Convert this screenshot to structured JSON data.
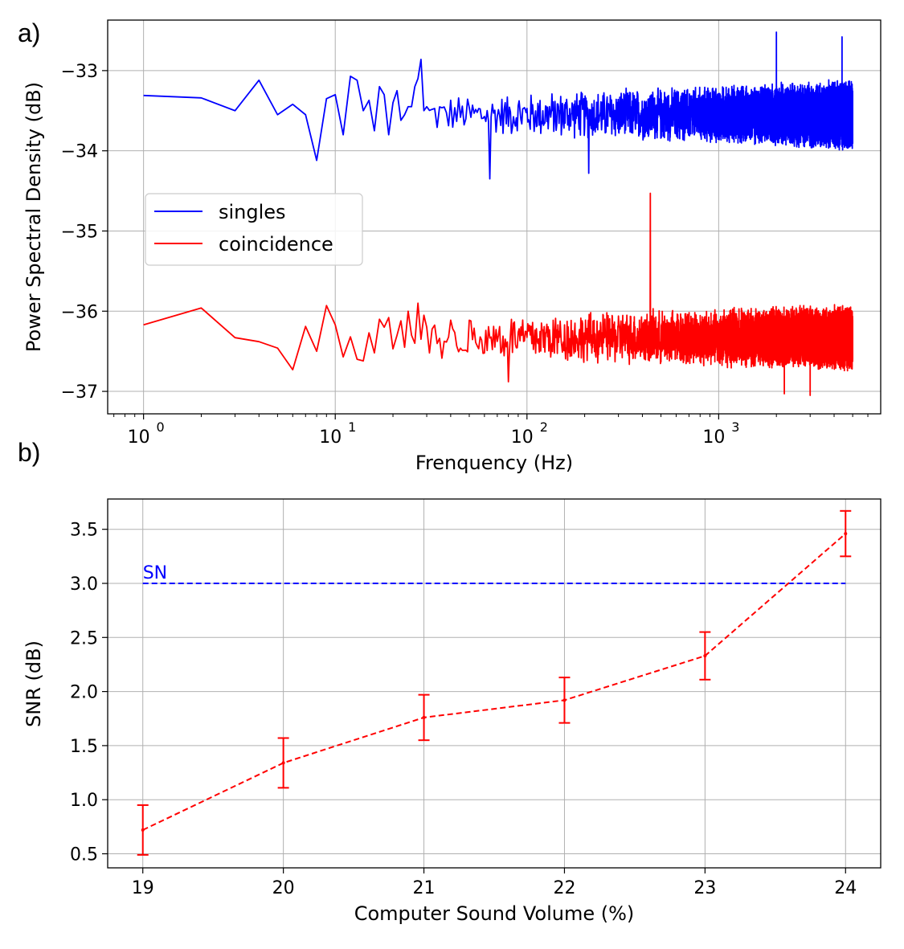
{
  "panel_labels": {
    "a": "a)",
    "b": "b)"
  },
  "chart_data": [
    {
      "type": "line",
      "panel": "a)",
      "title": "",
      "xlabel": "Frenquency (Hz)",
      "ylabel": "Power Spectral Density (dB)",
      "xscale": "log",
      "xlim": [
        0.65,
        7000
      ],
      "ylim": [
        -37.28,
        -32.37
      ],
      "xticks": [
        {
          "value": 1,
          "base": "10",
          "exp": "0"
        },
        {
          "value": 10,
          "base": "10",
          "exp": "1"
        },
        {
          "value": 100,
          "base": "10",
          "exp": "2"
        },
        {
          "value": 1000,
          "base": "10",
          "exp": "3"
        }
      ],
      "yticks": [
        -33,
        -34,
        -35,
        -36,
        -37
      ],
      "ytick_labels": [
        "−33",
        "−34",
        "−35",
        "−36",
        "−37"
      ],
      "grid": true,
      "legend_position": "center-left",
      "series": [
        {
          "name": "singles",
          "color": "#0000ff",
          "x": [
            1,
            2,
            3,
            4,
            5,
            6,
            7,
            8,
            9,
            10,
            11,
            12,
            13,
            14,
            15,
            16,
            17,
            18,
            19,
            20,
            21,
            22,
            23,
            24,
            25,
            26,
            27,
            28,
            29,
            30
          ],
          "values": [
            -33.31,
            -33.34,
            -33.5,
            -33.12,
            -33.55,
            -33.42,
            -33.55,
            -34.12,
            -33.35,
            -33.3,
            -33.8,
            -33.07,
            -33.12,
            -33.5,
            -33.37,
            -33.75,
            -33.2,
            -33.3,
            -33.8,
            -33.4,
            -33.25,
            -33.62,
            -33.55,
            -33.45,
            -33.45,
            -33.2,
            -33.1,
            -32.86,
            -33.5,
            -33.45
          ],
          "noise_band": {
            "x_start": 30,
            "x_end": 5000,
            "center": -33.55,
            "half_width_start": 0.25,
            "half_width_end": 0.45
          },
          "notable_points": [
            {
              "x": 64,
              "y": -34.35
            },
            {
              "x": 210,
              "y": -34.28
            },
            {
              "x": 2000,
              "y": -32.52
            },
            {
              "x": 4400,
              "y": -32.58
            }
          ]
        },
        {
          "name": "coincidence",
          "color": "#ff0000",
          "x": [
            1,
            2,
            3,
            4,
            5,
            6,
            7,
            8,
            9,
            10,
            11,
            12,
            13,
            14,
            15,
            16,
            17,
            18,
            19,
            20,
            21,
            22,
            23,
            24,
            25,
            26,
            27,
            28,
            29,
            30
          ],
          "values": [
            -36.17,
            -35.96,
            -36.33,
            -36.38,
            -36.46,
            -36.73,
            -36.19,
            -36.5,
            -35.93,
            -36.17,
            -36.57,
            -36.32,
            -36.6,
            -36.62,
            -36.27,
            -36.52,
            -36.1,
            -36.2,
            -36.08,
            -36.47,
            -36.3,
            -36.12,
            -36.45,
            -36.0,
            -36.3,
            -36.4,
            -35.9,
            -36.35,
            -36.05,
            -36.2
          ],
          "noise_band": {
            "x_start": 30,
            "x_end": 5000,
            "center": -36.33,
            "half_width_start": 0.3,
            "half_width_end": 0.42
          },
          "notable_points": [
            {
              "x": 440,
              "y": -34.53
            },
            {
              "x": 80,
              "y": -36.88
            },
            {
              "x": 2200,
              "y": -37.03
            },
            {
              "x": 3000,
              "y": -37.05
            }
          ]
        }
      ]
    },
    {
      "type": "line",
      "panel": "b)",
      "title": "",
      "xlabel": "Computer Sound Volume (%)",
      "ylabel": "SNR (dB)",
      "xlim": [
        18.75,
        24.25
      ],
      "ylim": [
        0.37,
        3.78
      ],
      "xticks": [
        19,
        20,
        21,
        22,
        23,
        24
      ],
      "xtick_labels": [
        "19",
        "20",
        "21",
        "22",
        "23",
        "24"
      ],
      "yticks": [
        0.5,
        1.0,
        1.5,
        2.0,
        2.5,
        3.0,
        3.5
      ],
      "ytick_labels": [
        "0.5",
        "1.0",
        "1.5",
        "2.0",
        "2.5",
        "3.0",
        "3.5"
      ],
      "grid": true,
      "series": [
        {
          "name": "SNR",
          "color": "#ff0000",
          "style": "dashed",
          "x": [
            19,
            20,
            21,
            22,
            23,
            24
          ],
          "values": [
            0.72,
            1.34,
            1.76,
            1.92,
            2.33,
            3.46
          ],
          "error": [
            0.23,
            0.23,
            0.21,
            0.21,
            0.22,
            0.21
          ]
        }
      ],
      "reference_line": {
        "label": "SN",
        "y": 3.0,
        "x_start": 19,
        "x_end": 24,
        "color": "#0000ff",
        "style": "dashed"
      }
    }
  ]
}
